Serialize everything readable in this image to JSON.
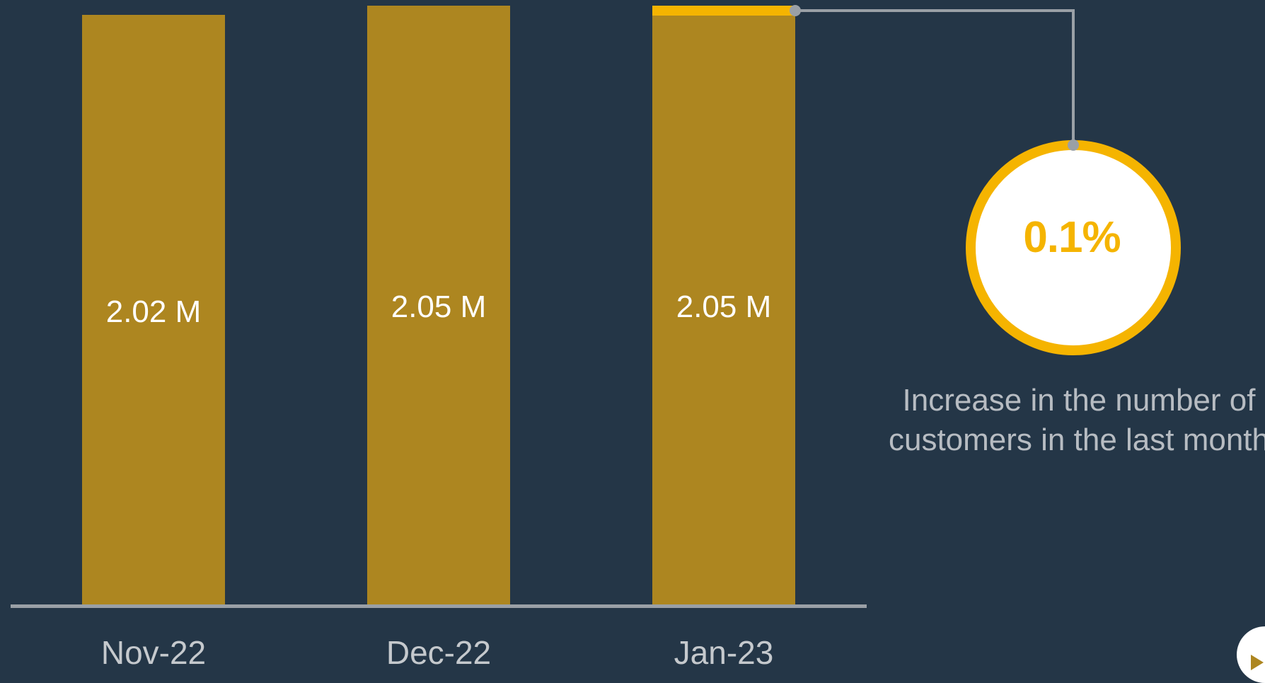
{
  "chart_data": {
    "type": "bar",
    "categories": [
      "Nov-22",
      "Dec-22",
      "Jan-23"
    ],
    "values": [
      2.02,
      2.05,
      2.05
    ],
    "data_labels": [
      "2.02 M",
      "2.05 M",
      "2.05 M"
    ],
    "unit": "M",
    "title": "",
    "xlabel": "",
    "ylabel": "",
    "grid": false,
    "legend": "none"
  },
  "callout": {
    "value": "0.1%",
    "description": "Increase in the number of customers in the last month"
  },
  "colors": {
    "background": "#243647",
    "bar": "#ad8620",
    "highlight": "#f5b400",
    "axis": "#9aa0a6",
    "label_text": "#ffffff",
    "tick_text": "#c5c9cd",
    "caption_text": "#b7bcc2"
  },
  "icons": {
    "play": "play-icon"
  }
}
